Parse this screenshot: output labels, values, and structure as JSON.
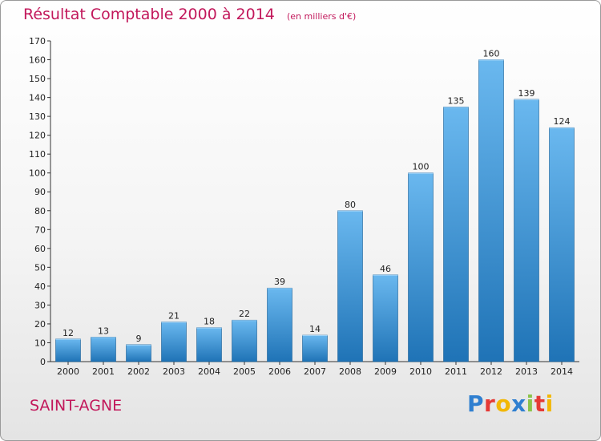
{
  "title": "Résultat Comptable 2000 à 2014",
  "subtitle": "(en milliers d'€)",
  "location": "SAINT-AGNE",
  "logo": {
    "letters": [
      "P",
      "r",
      "o",
      "x",
      "i",
      "t",
      "i"
    ],
    "colors": [
      "#2f7fd0",
      "#e53935",
      "#f2b705",
      "#2f7fd0",
      "#8bc34a",
      "#e53935",
      "#f2b705"
    ]
  },
  "colors": {
    "bar_light": "#6ab8ef",
    "bar_dark": "#1f73b6",
    "accent": "#c2185b"
  },
  "chart_data": {
    "type": "bar",
    "title": "Résultat Comptable 2000 à 2014",
    "subtitle": "(en milliers d'€)",
    "categories": [
      "2000",
      "2001",
      "2002",
      "2003",
      "2004",
      "2005",
      "2006",
      "2007",
      "2008",
      "2009",
      "2010",
      "2011",
      "2012",
      "2013",
      "2014"
    ],
    "values": [
      12,
      13,
      9,
      21,
      18,
      22,
      39,
      14,
      80,
      46,
      100,
      135,
      160,
      139,
      124
    ],
    "ylim": [
      0,
      170
    ],
    "yticks": [
      0,
      10,
      20,
      30,
      40,
      50,
      60,
      70,
      80,
      90,
      100,
      110,
      120,
      130,
      140,
      150,
      160,
      170
    ],
    "grid": false,
    "legend": "none"
  }
}
